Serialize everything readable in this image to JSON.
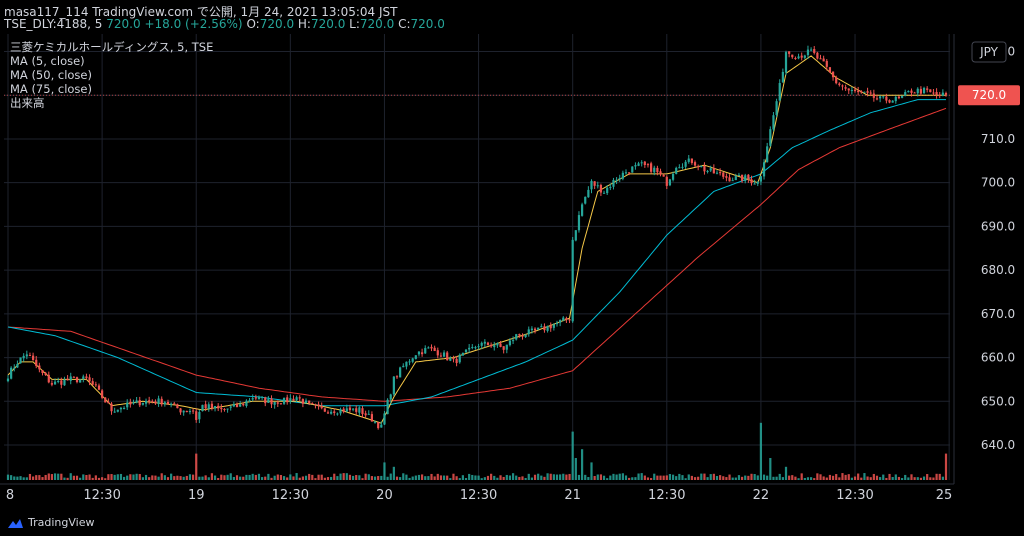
{
  "header": {
    "line1": "masa117_114 TradingView.com で公開, 1月 24, 2021 13:05:04 JST",
    "symbol": "TSE_DLY:4188, 5",
    "last": "720.0",
    "change": "+18.0 (+2.56%)",
    "o_label": "O:",
    "o_value": "720.0",
    "h_label": "H:",
    "h_value": "720.0",
    "l_label": "L:",
    "l_value": "720.0",
    "c_label": "C:",
    "c_value": "720.0"
  },
  "legend": {
    "title": "三菱ケミカルホールディングス, 5, TSE",
    "ma5": "MA (5, close)",
    "ma50": "MA (50, close)",
    "ma75": "MA (75, close)",
    "volume": "出来高"
  },
  "footer": {
    "brand": "TradingView"
  },
  "colors": {
    "up": "#26a69a",
    "down": "#ef5350",
    "ma5": "#f7c948",
    "ma50": "#00bcd4",
    "ma75": "#e53935",
    "grid": "#1e222d",
    "text": "#d1d4dc",
    "price_label_bg": "#ef5350"
  },
  "chart_data": {
    "type": "candlestick",
    "currency": "JPY",
    "ylim": [
      632,
      734
    ],
    "yticks": [
      640,
      650,
      660,
      670,
      680,
      690,
      700,
      710,
      720,
      730
    ],
    "ytick_labels": [
      "640.0",
      "650.0",
      "660.0",
      "670.0",
      "680.0",
      "690.0",
      "700.0",
      "710.0",
      "720.0",
      "730.0"
    ],
    "last_price": 720.0,
    "last_price_label": "720.0",
    "xticks": [
      {
        "i": 0,
        "label": "8"
      },
      {
        "i": 30,
        "label": "12:30"
      },
      {
        "i": 60,
        "label": "19"
      },
      {
        "i": 90,
        "label": "12:30"
      },
      {
        "i": 120,
        "label": "20"
      },
      {
        "i": 150,
        "label": "12:30"
      },
      {
        "i": 180,
        "label": "21"
      },
      {
        "i": 210,
        "label": "12:30"
      },
      {
        "i": 240,
        "label": "22"
      },
      {
        "i": 270,
        "label": "12:30"
      },
      {
        "i": 300,
        "label": "25"
      }
    ],
    "close_anchors": [
      [
        0,
        656
      ],
      [
        3,
        659
      ],
      [
        6,
        661
      ],
      [
        10,
        657
      ],
      [
        14,
        654
      ],
      [
        20,
        655
      ],
      [
        25,
        655
      ],
      [
        28,
        653
      ],
      [
        33,
        648
      ],
      [
        38,
        649
      ],
      [
        43,
        650
      ],
      [
        50,
        650
      ],
      [
        55,
        648
      ],
      [
        59,
        648
      ],
      [
        60,
        646
      ],
      [
        62,
        649
      ],
      [
        68,
        648
      ],
      [
        74,
        649
      ],
      [
        78,
        651
      ],
      [
        83,
        650
      ],
      [
        88,
        650
      ],
      [
        92,
        651
      ],
      [
        96,
        649
      ],
      [
        100,
        648
      ],
      [
        106,
        648
      ],
      [
        112,
        648
      ],
      [
        116,
        646
      ],
      [
        119,
        644
      ],
      [
        120,
        647
      ],
      [
        123,
        655
      ],
      [
        126,
        658
      ],
      [
        130,
        661
      ],
      [
        134,
        662
      ],
      [
        138,
        661
      ],
      [
        142,
        659
      ],
      [
        146,
        661
      ],
      [
        150,
        663
      ],
      [
        155,
        663
      ],
      [
        158,
        662
      ],
      [
        162,
        665
      ],
      [
        168,
        666
      ],
      [
        172,
        667
      ],
      [
        179,
        669
      ],
      [
        180,
        687
      ],
      [
        183,
        695
      ],
      [
        186,
        700
      ],
      [
        190,
        698
      ],
      [
        194,
        701
      ],
      [
        198,
        703
      ],
      [
        202,
        704
      ],
      [
        206,
        703
      ],
      [
        210,
        700
      ],
      [
        213,
        704
      ],
      [
        218,
        705
      ],
      [
        222,
        703
      ],
      [
        226,
        702
      ],
      [
        230,
        701
      ],
      [
        235,
        701
      ],
      [
        239,
        700
      ],
      [
        240,
        702
      ],
      [
        243,
        712
      ],
      [
        246,
        722
      ],
      [
        248,
        730
      ],
      [
        252,
        729
      ],
      [
        256,
        730
      ],
      [
        260,
        727
      ],
      [
        264,
        723
      ],
      [
        268,
        721
      ],
      [
        274,
        720
      ],
      [
        278,
        719
      ],
      [
        284,
        719
      ],
      [
        288,
        721
      ],
      [
        292,
        721
      ],
      [
        296,
        720
      ],
      [
        299,
        720
      ]
    ],
    "ma5_anchors": [
      [
        0,
        656
      ],
      [
        4,
        659
      ],
      [
        8,
        659
      ],
      [
        14,
        655
      ],
      [
        25,
        655
      ],
      [
        33,
        649
      ],
      [
        43,
        650
      ],
      [
        55,
        649
      ],
      [
        62,
        648
      ],
      [
        78,
        650
      ],
      [
        92,
        650
      ],
      [
        106,
        648
      ],
      [
        119,
        645
      ],
      [
        123,
        651
      ],
      [
        130,
        659
      ],
      [
        142,
        660
      ],
      [
        155,
        663
      ],
      [
        168,
        666
      ],
      [
        179,
        669
      ],
      [
        183,
        685
      ],
      [
        188,
        698
      ],
      [
        198,
        702
      ],
      [
        210,
        702
      ],
      [
        222,
        704
      ],
      [
        239,
        700
      ],
      [
        243,
        708
      ],
      [
        248,
        725
      ],
      [
        256,
        729
      ],
      [
        264,
        724
      ],
      [
        274,
        720
      ],
      [
        288,
        720
      ],
      [
        299,
        720
      ]
    ],
    "ma50_anchors": [
      [
        0,
        667
      ],
      [
        15,
        665
      ],
      [
        35,
        660
      ],
      [
        60,
        652
      ],
      [
        80,
        651
      ],
      [
        100,
        649
      ],
      [
        120,
        649
      ],
      [
        135,
        651
      ],
      [
        150,
        655
      ],
      [
        165,
        659
      ],
      [
        180,
        664
      ],
      [
        195,
        675
      ],
      [
        210,
        688
      ],
      [
        225,
        698
      ],
      [
        240,
        702
      ],
      [
        250,
        708
      ],
      [
        262,
        712
      ],
      [
        275,
        716
      ],
      [
        290,
        719
      ],
      [
        299,
        719
      ]
    ],
    "ma75_anchors": [
      [
        0,
        667
      ],
      [
        20,
        666
      ],
      [
        40,
        661
      ],
      [
        60,
        656
      ],
      [
        80,
        653
      ],
      [
        100,
        651
      ],
      [
        120,
        650
      ],
      [
        140,
        651
      ],
      [
        160,
        653
      ],
      [
        180,
        657
      ],
      [
        200,
        670
      ],
      [
        220,
        683
      ],
      [
        240,
        695
      ],
      [
        252,
        703
      ],
      [
        265,
        708
      ],
      [
        280,
        712
      ],
      [
        299,
        717
      ]
    ],
    "volume_spikes": [
      [
        60,
        6
      ],
      [
        120,
        4
      ],
      [
        123,
        3
      ],
      [
        180,
        11
      ],
      [
        181,
        5
      ],
      [
        183,
        7
      ],
      [
        186,
        4
      ],
      [
        240,
        13
      ],
      [
        243,
        5
      ],
      [
        248,
        3
      ],
      [
        299,
        6
      ]
    ]
  }
}
